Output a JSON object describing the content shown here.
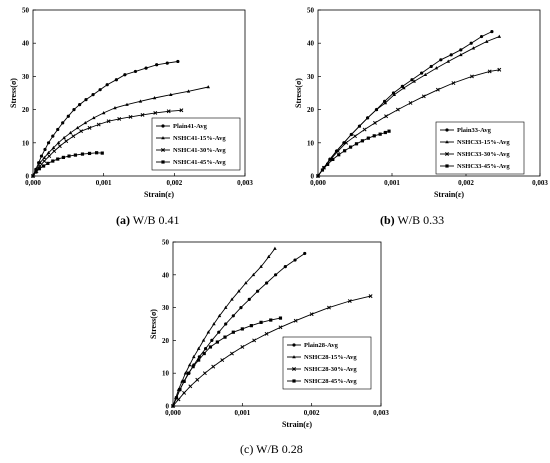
{
  "captions": [
    {
      "label": "(a)",
      "text": "W/B 0.41"
    },
    {
      "label": "(b)",
      "text": "W/B 0.33"
    },
    {
      "label": "(c)",
      "text": "W/B 0.28"
    }
  ],
  "chart_data": [
    {
      "type": "line",
      "xlabel": "Strain(ε)",
      "ylabel": "Stress(σ)",
      "xlim": [
        0,
        0.003
      ],
      "ylim": [
        0,
        50
      ],
      "xticks": [
        "0,000",
        "0,001",
        "0,002",
        "0,003"
      ],
      "yticks": [
        "0",
        "10",
        "20",
        "30",
        "40",
        "50"
      ],
      "legend_position": "bottom-right",
      "series": [
        {
          "name": "Plain41-Avg",
          "marker": "circle",
          "x": [
            0,
            4e-05,
            8e-05,
            0.00012,
            0.00017,
            0.00022,
            0.00028,
            0.00035,
            0.00042,
            0.0005,
            0.00058,
            0.00066,
            0.00075,
            0.00085,
            0.00095,
            0.00105,
            0.00118,
            0.0013,
            0.00145,
            0.0016,
            0.00175,
            0.0019,
            0.00205
          ],
          "y": [
            0,
            2,
            4,
            6,
            8,
            10,
            12,
            14,
            16,
            18,
            20,
            21.5,
            23,
            24.5,
            26,
            27.5,
            29,
            30.5,
            31.5,
            32.5,
            33.5,
            34,
            34.5
          ]
        },
        {
          "name": "NSHC41-15%-Avg",
          "marker": "triangle",
          "x": [
            0,
            5e-05,
            0.0001,
            0.00016,
            0.00022,
            0.00029,
            0.00036,
            0.00044,
            0.00053,
            0.00063,
            0.00074,
            0.00086,
            0.001,
            0.00116,
            0.00133,
            0.00152,
            0.00172,
            0.00195,
            0.0022,
            0.00248
          ],
          "y": [
            0,
            2,
            4,
            5.5,
            7,
            8.5,
            10,
            11.5,
            13,
            14.5,
            16,
            17.5,
            19,
            20.5,
            21.5,
            22.5,
            23.5,
            24.5,
            25.5,
            26.8
          ]
        },
        {
          "name": "NSHC41-30%-Avg",
          "marker": "x",
          "x": [
            0,
            5e-05,
            0.0001,
            0.00016,
            0.00023,
            0.0003,
            0.00038,
            0.00047,
            0.00057,
            0.00068,
            0.0008,
            0.00093,
            0.00107,
            0.00122,
            0.00138,
            0.00155,
            0.00173,
            0.00192,
            0.0021
          ],
          "y": [
            0,
            1.5,
            3,
            4.5,
            6,
            7.5,
            9,
            10.5,
            12,
            13.5,
            14.5,
            15.5,
            16.5,
            17.2,
            17.8,
            18.4,
            19,
            19.5,
            19.8
          ]
        },
        {
          "name": "NSHC41-45%-Avg",
          "marker": "square",
          "x": [
            0,
            4e-05,
            9e-05,
            0.00015,
            0.00021,
            0.00028,
            0.00035,
            0.00043,
            0.00051,
            0.0006,
            0.0007,
            0.0008,
            0.0009,
            0.00098
          ],
          "y": [
            0,
            1.2,
            2.2,
            3,
            3.8,
            4.5,
            5.1,
            5.6,
            6,
            6.3,
            6.6,
            6.8,
            7,
            6.9
          ]
        }
      ]
    },
    {
      "type": "line",
      "xlabel": "Strain(ε)",
      "ylabel": "Stress(σ)",
      "xlim": [
        0,
        0.003
      ],
      "ylim": [
        0,
        50
      ],
      "xticks": [
        "0,000",
        "0,001",
        "0,002",
        "0,003"
      ],
      "yticks": [
        "0",
        "10",
        "20",
        "30",
        "40",
        "50"
      ],
      "legend_position": "bottom-right",
      "series": [
        {
          "name": "Plain33-Avg",
          "marker": "circle",
          "x": [
            0,
            8e-05,
            0.00016,
            0.00025,
            0.00035,
            0.00045,
            0.00056,
            0.00067,
            0.00079,
            0.0009,
            0.00102,
            0.00114,
            0.00127,
            0.0014,
            0.00153,
            0.00166,
            0.0018,
            0.00193,
            0.00207,
            0.00221,
            0.00235
          ],
          "y": [
            0,
            2.5,
            5,
            7.5,
            10,
            12.5,
            15,
            17.5,
            20,
            22.5,
            25,
            27,
            29,
            31,
            33,
            35,
            36.5,
            38,
            40,
            42,
            43.5
          ]
        },
        {
          "name": "NSHC33-15%-Avg",
          "marker": "triangle",
          "x": [
            0,
            8e-05,
            0.00016,
            0.00025,
            0.00035,
            0.00045,
            0.00056,
            0.00067,
            0.00079,
            0.00091,
            0.00103,
            0.00116,
            0.0013,
            0.00145,
            0.0016,
            0.00176,
            0.00193,
            0.0021,
            0.00228,
            0.00245
          ],
          "y": [
            0,
            2.5,
            5,
            7.5,
            10,
            12.5,
            15,
            17.5,
            20,
            22,
            24.5,
            26.5,
            28.5,
            30.5,
            32.5,
            34.5,
            36.5,
            38.5,
            40.5,
            42
          ]
        },
        {
          "name": "NSHC33-30%-Avg",
          "marker": "x",
          "x": [
            0,
            8e-05,
            0.00017,
            0.00027,
            0.00038,
            0.0005,
            0.00063,
            0.00077,
            0.00092,
            0.00108,
            0.00125,
            0.00143,
            0.00162,
            0.00183,
            0.00208,
            0.00232,
            0.00245
          ],
          "y": [
            0,
            2.5,
            5,
            7.5,
            10,
            12,
            14,
            16,
            18,
            20,
            22,
            24,
            26,
            28,
            30,
            31.5,
            32
          ]
        },
        {
          "name": "NSHC33-45%-Avg",
          "marker": "square",
          "x": [
            0,
            6e-05,
            0.00013,
            0.0002,
            0.00028,
            0.00036,
            0.00044,
            0.00052,
            0.0006,
            0.00068,
            0.00076,
            0.00084,
            0.00091,
            0.00096
          ],
          "y": [
            0,
            1.8,
            3.5,
            5,
            6.4,
            7.6,
            8.7,
            9.7,
            10.6,
            11.4,
            12.1,
            12.6,
            13.1,
            13.5
          ]
        }
      ]
    },
    {
      "type": "line",
      "xlabel": "Strain(ε)",
      "ylabel": "Stress(σ)",
      "xlim": [
        0,
        0.003
      ],
      "ylim": [
        0,
        50
      ],
      "xticks": [
        "0,000",
        "0,001",
        "0,002",
        "0,003"
      ],
      "yticks": [
        "0",
        "10",
        "20",
        "30",
        "40",
        "50"
      ],
      "legend_position": "bottom-right",
      "series": [
        {
          "name": "Plain28-Avg",
          "marker": "circle",
          "x": [
            0,
            5e-05,
            0.0001,
            0.00016,
            0.00023,
            0.0003,
            0.00038,
            0.00047,
            0.00056,
            0.00066,
            0.00076,
            0.00087,
            0.00098,
            0.0011,
            0.00122,
            0.00135,
            0.00148,
            0.00162,
            0.00176,
            0.0019
          ],
          "y": [
            0,
            2.5,
            5,
            7.5,
            10,
            12.5,
            15,
            17.5,
            20,
            22.5,
            25,
            27.5,
            30,
            32.5,
            35,
            37.5,
            40,
            42.5,
            44.5,
            46.5
          ]
        },
        {
          "name": "NSHC28-15%-Avg",
          "marker": "triangle",
          "x": [
            0,
            4e-05,
            8e-05,
            0.00013,
            0.00018,
            0.00024,
            0.0003,
            0.00037,
            0.00044,
            0.00051,
            0.00059,
            0.00067,
            0.00076,
            0.00085,
            0.00095,
            0.00105,
            0.00116,
            0.00127,
            0.00138,
            0.00147
          ],
          "y": [
            0,
            2.5,
            5,
            7.5,
            10,
            12.5,
            15,
            17.5,
            20,
            22.5,
            25,
            27.5,
            30,
            32.5,
            35,
            37.5,
            40,
            42.5,
            45.5,
            48
          ]
        },
        {
          "name": "NSHC28-30%-Avg",
          "marker": "x",
          "x": [
            0,
            8e-05,
            0.00016,
            0.00025,
            0.00035,
            0.00046,
            0.00058,
            0.00071,
            0.00085,
            0.001,
            0.00117,
            0.00135,
            0.00155,
            0.00177,
            0.002,
            0.00225,
            0.00255,
            0.00285
          ],
          "y": [
            0,
            2,
            4,
            6,
            8,
            10,
            12,
            14,
            16,
            18,
            20,
            22,
            24,
            26,
            28,
            30,
            32,
            33.5
          ]
        },
        {
          "name": "NSHC28-45%-Avg",
          "marker": "square",
          "x": [
            0,
            5e-05,
            0.0001,
            0.00016,
            0.00022,
            0.00029,
            0.00037,
            0.00045,
            0.00054,
            0.00064,
            0.00075,
            0.00087,
            0.001,
            0.00113,
            0.00127,
            0.00141,
            0.00155
          ],
          "y": [
            0,
            2.5,
            5,
            7.5,
            10,
            12,
            14,
            16,
            18,
            19.5,
            21,
            22.5,
            23.5,
            24.5,
            25.5,
            26.2,
            26.8
          ]
        }
      ]
    }
  ]
}
